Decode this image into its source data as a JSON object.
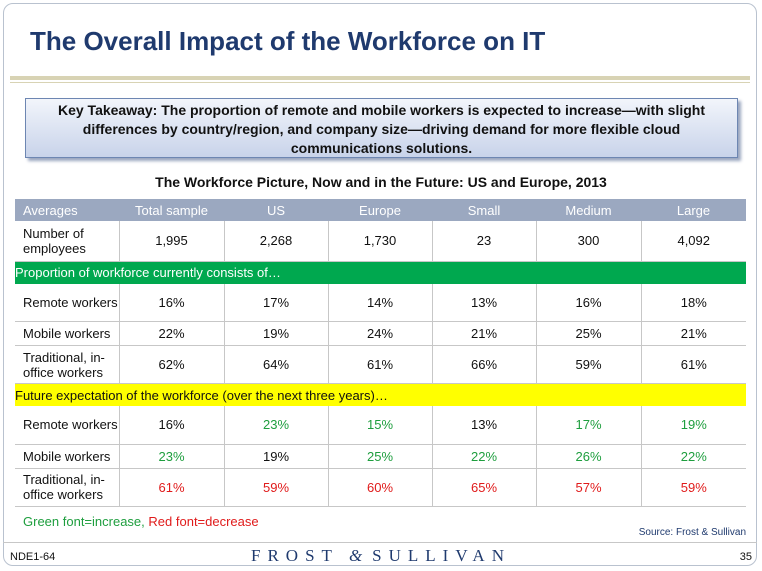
{
  "slide": {
    "title": "The Overall Impact of the Workforce on IT",
    "takeaway": "Key Takeaway: The proportion of remote and mobile workers is expected to increase—with slight differences by country/region, and company size—driving demand for more flexible cloud communications solutions.",
    "table_title": "The Workforce Picture, Now and in the Future: US and Europe, 2013"
  },
  "table": {
    "headers": [
      "Averages",
      "Total sample",
      "US",
      "Europe",
      "Small",
      "Medium",
      "Large"
    ],
    "employees": {
      "label": "Number of employees",
      "values": [
        "1,995",
        "2,268",
        "1,730",
        "23",
        "300",
        "4,092"
      ]
    },
    "current_section": "Proportion of workforce currently consists of…",
    "current_rows": [
      {
        "label": "Remote workers",
        "values": [
          "16%",
          "17%",
          "14%",
          "13%",
          "16%",
          "18%"
        ]
      },
      {
        "label": "Mobile workers",
        "values": [
          "22%",
          "19%",
          "24%",
          "21%",
          "25%",
          "21%"
        ]
      },
      {
        "label": "Traditional, in-office workers",
        "values": [
          "62%",
          "64%",
          "61%",
          "66%",
          "59%",
          "61%"
        ]
      }
    ],
    "future_section": "Future expectation of the workforce (over the next three years)…",
    "future_rows": [
      {
        "label": "Remote workers",
        "values": [
          "16%",
          "23%",
          "15%",
          "13%",
          "17%",
          "19%"
        ],
        "trend": [
          "none",
          "up",
          "up",
          "none",
          "up",
          "up"
        ]
      },
      {
        "label": "Mobile workers",
        "values": [
          "23%",
          "19%",
          "25%",
          "22%",
          "26%",
          "22%"
        ],
        "trend": [
          "up",
          "none",
          "up",
          "up",
          "up",
          "up"
        ]
      },
      {
        "label": "Traditional, in-office workers",
        "values": [
          "61%",
          "59%",
          "60%",
          "65%",
          "57%",
          "59%"
        ],
        "trend": [
          "down",
          "down",
          "down",
          "down",
          "down",
          "down"
        ]
      }
    ]
  },
  "legend": {
    "green": "Green font=increase,",
    "red": "Red font=decrease"
  },
  "source": "Source: Frost & Sullivan",
  "footer": {
    "code": "NDE1-64",
    "brand_left": "FROST",
    "brand_amp": "&",
    "brand_right": "SULLIVAN",
    "page": "35"
  },
  "colors": {
    "title": "#1f3a6e",
    "header_bg": "#9ba8c0",
    "green_bar": "#00a84f",
    "yellow_bar": "#ffff00",
    "increase": "#1e9e3e",
    "decrease": "#e01b1b"
  }
}
